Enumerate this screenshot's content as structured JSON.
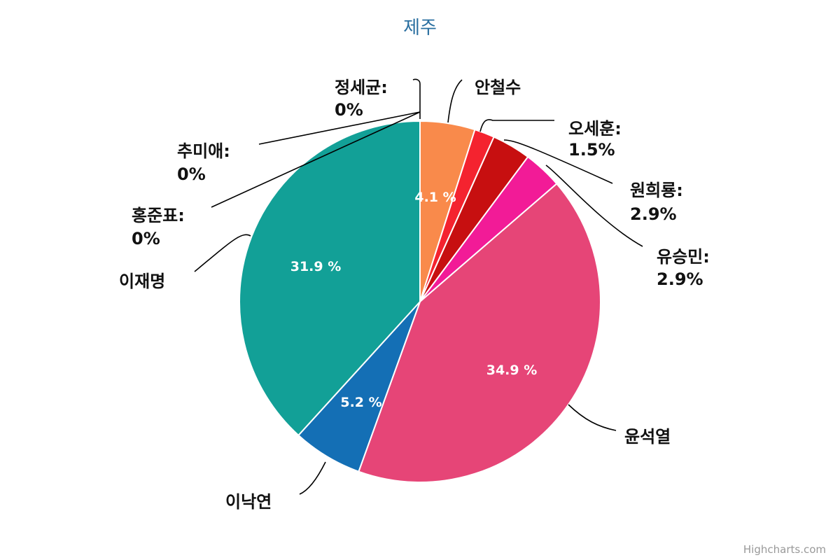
{
  "chart_data": {
    "type": "pie",
    "title": "제주",
    "credit": "Highcharts.com",
    "slices": [
      {
        "name": "안철수",
        "value": 4.1,
        "color": "#f98a4b",
        "label": "안철수",
        "value_text": "4.1 %"
      },
      {
        "name": "오세훈",
        "value": 1.5,
        "color": "#f4232f",
        "label": "오세훈:",
        "value_text": "1.5%"
      },
      {
        "name": "원희룡",
        "value": 2.9,
        "color": "#c70f10",
        "label": "원희룡:",
        "value_text": "2.9%"
      },
      {
        "name": "유승민",
        "value": 2.9,
        "color": "#f21b97",
        "label": "유승민:",
        "value_text": "2.9%"
      },
      {
        "name": "윤석열",
        "value": 34.9,
        "color": "#e64577",
        "label": "윤석열",
        "value_text": "34.9 %"
      },
      {
        "name": "이낙연",
        "value": 5.2,
        "color": "#146fb5",
        "label": "이낙연",
        "value_text": "5.2 %"
      },
      {
        "name": "이재명",
        "value": 31.9,
        "color": "#12a097",
        "label": "이재명",
        "value_text": "31.9 %"
      },
      {
        "name": "홍준표",
        "value": 0,
        "color": "#7cb5ec",
        "label": "홍준표:",
        "value_text": "0%"
      },
      {
        "name": "추미애",
        "value": 0,
        "color": "#434348",
        "label": "추미애:",
        "value_text": "0%"
      },
      {
        "name": "정세균",
        "value": 0,
        "color": "#90ed7d",
        "label": "정세균:",
        "value_text": "0%"
      }
    ]
  }
}
